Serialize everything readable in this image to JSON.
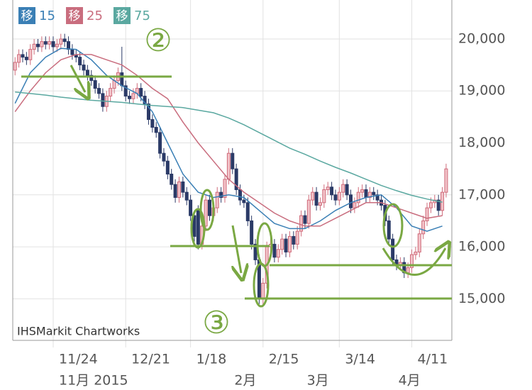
{
  "chart_data": {
    "type": "candlestick",
    "legend_marker": "移",
    "source": "IHSMarkit Chartworks",
    "annotations": {
      "circled_2": "②",
      "circled_3": "③"
    },
    "xlim": [
      -0.6,
      114.5
    ],
    "ylim": [
      14200,
      20750
    ],
    "grid": true,
    "xticks": [
      {
        "value": 10,
        "label": "11/24"
      },
      {
        "value": 29,
        "label": "12/21"
      },
      {
        "value": 46,
        "label": "1/18"
      },
      {
        "value": 65,
        "label": "2/15"
      },
      {
        "value": 85,
        "label": "3/14"
      },
      {
        "value": 104,
        "label": "4/11"
      }
    ],
    "month_ticks": [
      {
        "value": 10,
        "label": "11月 2015"
      },
      {
        "value": 56,
        "label": "2月"
      },
      {
        "value": 75,
        "label": "3月"
      },
      {
        "value": 99,
        "label": "4月"
      }
    ],
    "yticks": [
      {
        "value": 15000,
        "label": "15,000"
      },
      {
        "value": 16000,
        "label": "16,000"
      },
      {
        "value": 17000,
        "label": "17,000"
      },
      {
        "value": 18000,
        "label": "18,000"
      },
      {
        "value": 19000,
        "label": "19,000"
      },
      {
        "value": 20000,
        "label": "20,000"
      }
    ],
    "up_color": "#f2c3c9",
    "up_edge": "#cf6b7a",
    "down_color": "#2b3a67",
    "candles": {
      "x": [
        0,
        1,
        2,
        3,
        4,
        5,
        6,
        7,
        8,
        9,
        10,
        11,
        12,
        13,
        14,
        15,
        16,
        17,
        18,
        19,
        20,
        21,
        22,
        23,
        24,
        25,
        26,
        27,
        28,
        29,
        30,
        31,
        32,
        33,
        34,
        35,
        36,
        37,
        38,
        39,
        40,
        41,
        42,
        43,
        44,
        45,
        46,
        47,
        48,
        49,
        50,
        51,
        52,
        53,
        54,
        55,
        56,
        57,
        58,
        59,
        60,
        61,
        62,
        63,
        64,
        65,
        66,
        67,
        68,
        69,
        70,
        71,
        72,
        73,
        74,
        75,
        76,
        77,
        78,
        79,
        80,
        81,
        82,
        83,
        84,
        85,
        86,
        87,
        88,
        89,
        90,
        91,
        92,
        93,
        94,
        95,
        96,
        97,
        98,
        99,
        100,
        101,
        102,
        103,
        104,
        105,
        106,
        107,
        108,
        109,
        110,
        111,
        112,
        113
      ],
      "open": [
        19400,
        19550,
        19700,
        19650,
        19600,
        19800,
        19900,
        19850,
        19950,
        19900,
        19950,
        19850,
        19900,
        20000,
        19950,
        19800,
        19700,
        19650,
        19500,
        19400,
        19300,
        19200,
        19050,
        18950,
        18700,
        18900,
        19050,
        19200,
        19350,
        19100,
        18900,
        18850,
        18950,
        19050,
        18900,
        18750,
        18450,
        18300,
        18200,
        17800,
        17650,
        17400,
        17200,
        16950,
        17250,
        17050,
        16900,
        16600,
        16700,
        16050,
        16400,
        16900,
        16600,
        16750,
        17050,
        16950,
        17300,
        17800,
        17500,
        17100,
        16900,
        16850,
        16500,
        16050,
        15750,
        15000,
        15300,
        16000,
        16050,
        15800,
        15950,
        16150,
        15900,
        16200,
        16050,
        16300,
        16600,
        16450,
        16900,
        17050,
        16800,
        16850,
        17100,
        17150,
        17000,
        16900,
        17050,
        17200,
        17000,
        16750,
        16850,
        17050,
        17100,
        16950,
        17050,
        17000,
        16900,
        16800,
        16500,
        16150,
        15750,
        15650,
        15700,
        15500,
        15600,
        15850,
        15900,
        16250,
        16500,
        16750,
        16850,
        16900,
        16700,
        17050
      ],
      "close": [
        19550,
        19700,
        19650,
        19600,
        19800,
        19900,
        19850,
        19950,
        19900,
        19950,
        19850,
        19900,
        20000,
        19950,
        19800,
        19700,
        19650,
        19500,
        19400,
        19300,
        19200,
        19050,
        18950,
        18700,
        18900,
        19050,
        19200,
        19350,
        19100,
        18900,
        18850,
        18950,
        19050,
        18900,
        18750,
        18450,
        18300,
        18200,
        17800,
        17650,
        17400,
        17200,
        16950,
        17250,
        17050,
        16900,
        16600,
        16200,
        16050,
        16400,
        16900,
        16600,
        16750,
        17050,
        16950,
        17300,
        17800,
        17500,
        17100,
        16900,
        16850,
        16500,
        16050,
        15750,
        15000,
        15300,
        16000,
        16050,
        15800,
        15950,
        16150,
        15900,
        16200,
        16050,
        16300,
        16600,
        16450,
        16900,
        17050,
        16800,
        16850,
        17100,
        17150,
        17000,
        16900,
        17050,
        17200,
        17000,
        16750,
        16850,
        17050,
        17100,
        16950,
        17050,
        17000,
        16900,
        16800,
        16500,
        16150,
        15750,
        15650,
        15700,
        15500,
        15600,
        15850,
        15900,
        16250,
        16500,
        16750,
        16850,
        16900,
        16700,
        17050,
        17500
      ],
      "high": [
        19650,
        19800,
        19800,
        19750,
        19900,
        20000,
        20000,
        20050,
        20050,
        20050,
        20050,
        20000,
        20100,
        20100,
        20050,
        19900,
        19800,
        19750,
        19600,
        19500,
        19400,
        19300,
        19150,
        19050,
        19000,
        19150,
        19300,
        19450,
        19850,
        19200,
        19000,
        19050,
        19150,
        19150,
        19000,
        18850,
        18550,
        18400,
        18300,
        17900,
        17750,
        17500,
        17300,
        17350,
        17350,
        17150,
        17000,
        16700,
        16800,
        16500,
        17000,
        17000,
        16850,
        17150,
        17150,
        17400,
        17900,
        17900,
        17600,
        17200,
        17000,
        16950,
        16600,
        16150,
        15850,
        15400,
        16100,
        16300,
        16150,
        16050,
        16250,
        16250,
        16300,
        16300,
        16400,
        16700,
        16700,
        17000,
        17150,
        17150,
        16950,
        17200,
        17250,
        17250,
        17100,
        17150,
        17300,
        17300,
        17100,
        16950,
        17150,
        17200,
        17200,
        17150,
        17150,
        17100,
        17000,
        16900,
        16600,
        16250,
        15850,
        15800,
        15800,
        15700,
        15950,
        16000,
        16350,
        16600,
        16850,
        16950,
        17000,
        17000,
        17150,
        17600
      ],
      "low": [
        19300,
        19450,
        19550,
        19500,
        19500,
        19700,
        19750,
        19750,
        19800,
        19800,
        19750,
        19750,
        19800,
        19850,
        19700,
        19600,
        19550,
        19400,
        19300,
        19200,
        19100,
        18950,
        18850,
        18600,
        18600,
        18800,
        18950,
        19100,
        19000,
        18800,
        18750,
        18750,
        18850,
        18800,
        18650,
        18350,
        18200,
        18100,
        17700,
        17550,
        17300,
        17100,
        16850,
        16850,
        16950,
        16800,
        16500,
        16100,
        15950,
        15950,
        16300,
        16500,
        16500,
        16650,
        16850,
        16850,
        17200,
        17400,
        17000,
        16800,
        16750,
        16400,
        15950,
        15650,
        14900,
        14850,
        15200,
        15900,
        15700,
        15700,
        15850,
        15800,
        15800,
        15950,
        15950,
        16200,
        16350,
        16350,
        16800,
        16700,
        16700,
        16750,
        17000,
        16900,
        16800,
        16800,
        16950,
        16900,
        16650,
        16650,
        16750,
        16950,
        16850,
        16850,
        16900,
        16800,
        16700,
        16400,
        16050,
        15650,
        15550,
        15550,
        15400,
        15400,
        15500,
        15750,
        15800,
        16150,
        16400,
        16650,
        16750,
        16600,
        16600,
        16950
      ]
    },
    "series": [
      {
        "name": "15",
        "color": "#3a7fb5",
        "x": [
          0,
          4,
          8,
          12,
          16,
          20,
          24,
          28,
          32,
          36,
          40,
          44,
          48,
          52,
          56,
          60,
          64,
          68,
          72,
          76,
          80,
          84,
          88,
          92,
          96,
          100,
          104,
          108,
          112
        ],
        "values": [
          18760,
          19350,
          19650,
          19820,
          19800,
          19600,
          19300,
          19100,
          18950,
          18600,
          18000,
          17400,
          17050,
          16950,
          17000,
          16950,
          16700,
          16450,
          16350,
          16350,
          16500,
          16700,
          16850,
          16950,
          17000,
          16750,
          16400,
          16300,
          16400
        ]
      },
      {
        "name": "25",
        "color": "#c96d7e",
        "x": [
          0,
          4,
          8,
          12,
          16,
          20,
          24,
          28,
          32,
          36,
          40,
          44,
          48,
          52,
          56,
          60,
          64,
          68,
          72,
          76,
          80,
          84,
          88,
          92,
          96,
          100,
          104,
          108,
          112
        ],
        "values": [
          18600,
          19000,
          19350,
          19600,
          19700,
          19700,
          19600,
          19500,
          19300,
          19050,
          18850,
          18400,
          18000,
          17650,
          17300,
          17050,
          16850,
          16650,
          16500,
          16400,
          16400,
          16550,
          16700,
          16850,
          16850,
          16750,
          16650,
          16550,
          16600
        ]
      },
      {
        "name": "75",
        "color": "#5aa8a0",
        "x": [
          0,
          4,
          8,
          12,
          16,
          20,
          24,
          28,
          32,
          36,
          40,
          44,
          48,
          52,
          56,
          60,
          64,
          68,
          72,
          76,
          80,
          84,
          88,
          92,
          96,
          100,
          104,
          108,
          112
        ],
        "values": [
          18980,
          18950,
          18920,
          18880,
          18850,
          18820,
          18800,
          18780,
          18750,
          18720,
          18700,
          18680,
          18630,
          18580,
          18480,
          18350,
          18200,
          18050,
          17900,
          17780,
          17650,
          17530,
          17420,
          17300,
          17180,
          17080,
          16990,
          16920,
          16860
        ]
      }
    ]
  }
}
